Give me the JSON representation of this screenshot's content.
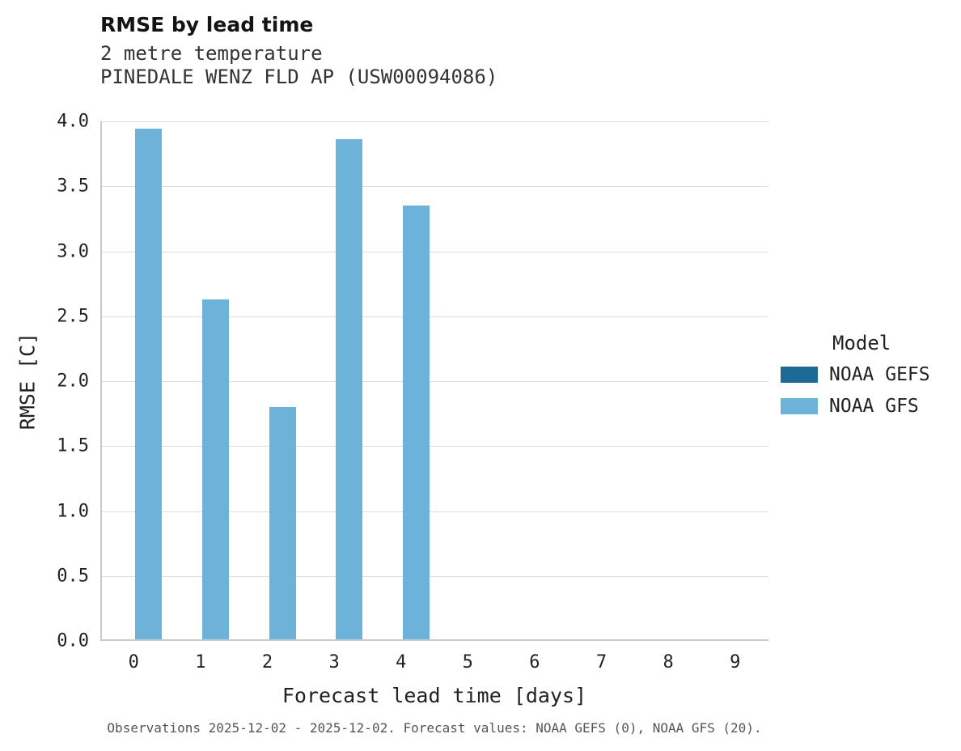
{
  "header": {
    "title": "RMSE by lead time",
    "subtitle1": "2 metre temperature",
    "subtitle2": "PINEDALE WENZ FLD AP (USW00094086)"
  },
  "chart_data": {
    "type": "bar",
    "title": "RMSE by lead time",
    "categories": [
      "0",
      "1",
      "2",
      "3",
      "4",
      "5",
      "6",
      "7",
      "8",
      "9"
    ],
    "series": [
      {
        "name": "NOAA GEFS",
        "color": "#1d6a96",
        "values": [
          null,
          null,
          null,
          null,
          null,
          null,
          null,
          null,
          null,
          null
        ]
      },
      {
        "name": "NOAA GFS",
        "color": "#6db3d9",
        "values": [
          3.93,
          2.62,
          1.79,
          3.85,
          3.34,
          null,
          null,
          null,
          null,
          null
        ]
      }
    ],
    "xlabel": "Forecast lead time [days]",
    "ylabel": "RMSE [C]",
    "ylim": [
      0.0,
      4.0
    ],
    "ytick_step": 0.5,
    "ytick_decimals": 1,
    "legend_title": "Model",
    "legend_position": "right",
    "grid": true,
    "group_width_frac": 0.8
  },
  "footer": {
    "caption": "Observations 2025-12-02 - 2025-12-02. Forecast values: NOAA GEFS (0), NOAA GFS (20)."
  }
}
